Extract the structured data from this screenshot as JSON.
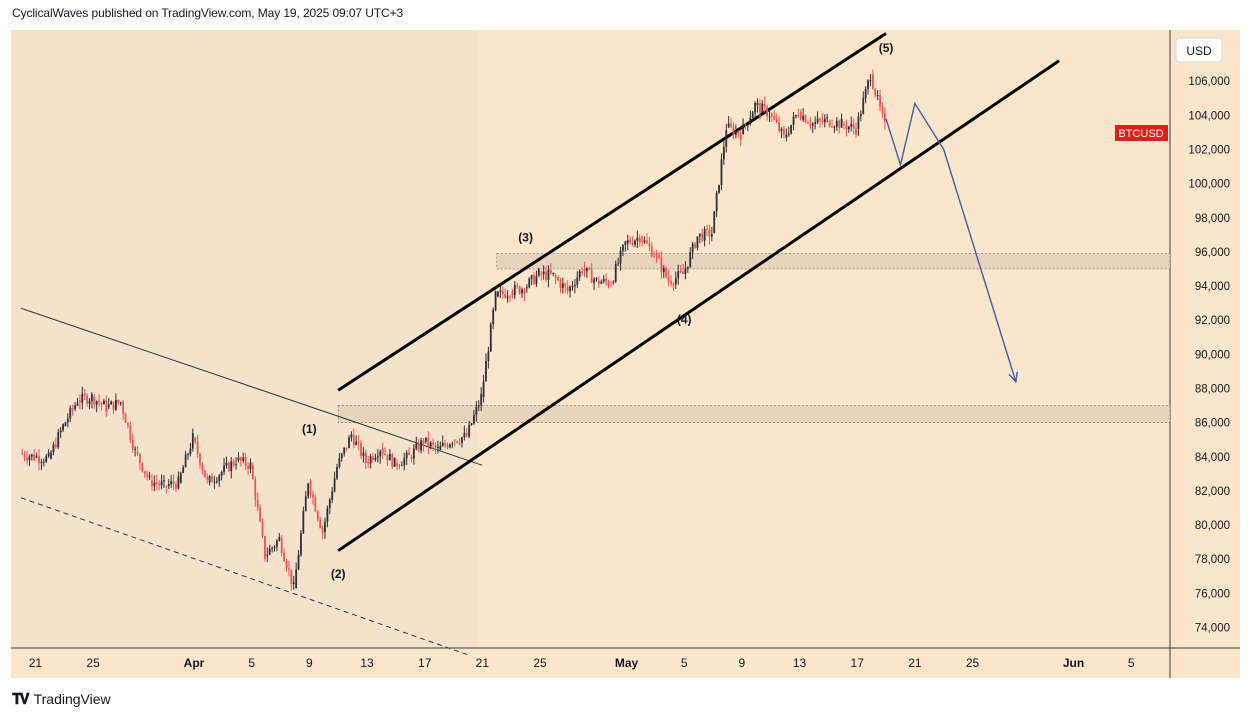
{
  "header": {
    "text": "CyclicalWaves published on TradingView.com, May 19, 2025 09:07 UTC+3"
  },
  "footer": {
    "logo_text": "TradingView",
    "logo_icon": "tradingview-logo-icon"
  },
  "colors": {
    "chart_bg": "#fbe6cb",
    "pattern_bg": "#f5e2cc",
    "candle_up": "#2a2e39",
    "candle_down": "#ef5350",
    "channel": "#000000",
    "projection": "#3d5ba9",
    "price_badge": "#e0201b",
    "zone_fill": "#e6d3bc"
  },
  "chart_data": {
    "type": "candlestick",
    "symbol_badge": "BTCUSD",
    "price_axis_unit": "USD",
    "y_ticks": [
      "106,000",
      "104,000",
      "102,000",
      "100,000",
      "98,000",
      "96,000",
      "94,000",
      "92,000",
      "90,000",
      "88,000",
      "86,000",
      "84,000",
      "82,000",
      "80,000",
      "78,000",
      "76,000",
      "74,000"
    ],
    "x_ticks": [
      "21",
      "25",
      "Apr",
      "5",
      "9",
      "13",
      "17",
      "21",
      "25",
      "May",
      "5",
      "9",
      "13",
      "17",
      "21",
      "25",
      "Jun",
      "5"
    ],
    "ylim": [
      72800,
      109000
    ],
    "xlim": [
      "2025-03-20",
      "2025-06-07"
    ],
    "ohlc_close": [
      [
        "2025-03-20",
        84200
      ],
      [
        "2025-03-21",
        84000
      ],
      [
        "2025-03-22",
        83900
      ],
      [
        "2025-03-23",
        85800
      ],
      [
        "2025-03-24",
        87300
      ],
      [
        "2025-03-25",
        87500
      ],
      [
        "2025-03-26",
        86900
      ],
      [
        "2025-03-27",
        87200
      ],
      [
        "2025-03-28",
        84300
      ],
      [
        "2025-03-29",
        82600
      ],
      [
        "2025-03-30",
        82300
      ],
      [
        "2025-03-31",
        82500
      ],
      [
        "2025-04-01",
        85100
      ],
      [
        "2025-04-02",
        82500
      ],
      [
        "2025-04-03",
        83100
      ],
      [
        "2025-04-04",
        83800
      ],
      [
        "2025-04-05",
        83500
      ],
      [
        "2025-04-06",
        78200
      ],
      [
        "2025-04-07",
        79200
      ],
      [
        "2025-04-08",
        76300
      ],
      [
        "2025-04-09",
        82600
      ],
      [
        "2025-04-10",
        79600
      ],
      [
        "2025-04-11",
        83400
      ],
      [
        "2025-04-12",
        85300
      ],
      [
        "2025-04-13",
        83700
      ],
      [
        "2025-04-14",
        84500
      ],
      [
        "2025-04-15",
        83600
      ],
      [
        "2025-04-16",
        84000
      ],
      [
        "2025-04-17",
        84900
      ],
      [
        "2025-04-18",
        84400
      ],
      [
        "2025-04-19",
        85000
      ],
      [
        "2025-04-20",
        85200
      ],
      [
        "2025-04-21",
        87500
      ],
      [
        "2025-04-22",
        93400
      ],
      [
        "2025-04-23",
        93700
      ],
      [
        "2025-04-24",
        93900
      ],
      [
        "2025-04-25",
        94700
      ],
      [
        "2025-04-26",
        94600
      ],
      [
        "2025-04-27",
        93700
      ],
      [
        "2025-04-28",
        95000
      ],
      [
        "2025-04-29",
        94300
      ],
      [
        "2025-04-30",
        94200
      ],
      [
        "2025-05-01",
        96500
      ],
      [
        "2025-05-02",
        96900
      ],
      [
        "2025-05-03",
        95900
      ],
      [
        "2025-05-04",
        94300
      ],
      [
        "2025-05-05",
        94700
      ],
      [
        "2025-05-06",
        96900
      ],
      [
        "2025-05-07",
        97100
      ],
      [
        "2025-05-08",
        103300
      ],
      [
        "2025-05-09",
        102900
      ],
      [
        "2025-05-10",
        104600
      ],
      [
        "2025-05-11",
        104100
      ],
      [
        "2025-05-12",
        102700
      ],
      [
        "2025-05-13",
        104200
      ],
      [
        "2025-05-14",
        103500
      ],
      [
        "2025-05-15",
        103700
      ],
      [
        "2025-05-16",
        103500
      ],
      [
        "2025-05-17",
        103200
      ],
      [
        "2025-05-18",
        106400
      ],
      [
        "2025-05-19",
        103300
      ]
    ],
    "overlays": {
      "wave_labels": [
        "(1)",
        "(2)",
        "(3)",
        "(4)",
        "(5)"
      ],
      "zones": [
        {
          "name": "resistance-zone-96k",
          "from": 95000,
          "to": 95900,
          "start": "2025-04-22"
        },
        {
          "name": "support-zone-86k",
          "from": 86000,
          "to": 87000,
          "start": "2025-04-11"
        }
      ],
      "channel_upper": [
        [
          "2025-04-11",
          87900
        ],
        [
          "2025-05-19",
          108800
        ]
      ],
      "channel_lower": [
        [
          "2025-04-11",
          78500
        ],
        [
          "2025-05-31",
          107200
        ]
      ],
      "descending_trendline": [
        [
          "2025-03-20",
          92700
        ],
        [
          "2025-04-21",
          83500
        ]
      ],
      "descending_dashed": [
        [
          "2025-03-20",
          81600
        ],
        [
          "2025-04-20",
          72400
        ]
      ],
      "projection_path": [
        [
          "2025-05-19",
          103800
        ],
        [
          "2025-05-20",
          101100
        ],
        [
          "2025-05-21",
          104700
        ],
        [
          "2025-05-23",
          102000
        ],
        [
          "2025-05-28",
          88400
        ]
      ]
    }
  }
}
